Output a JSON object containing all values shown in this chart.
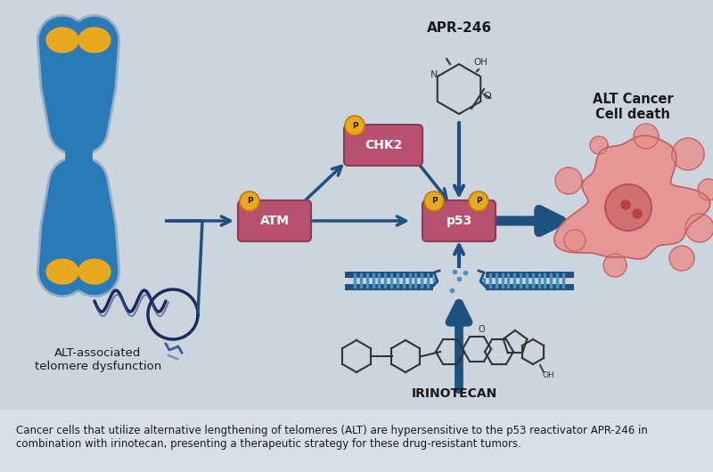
{
  "background_color": "#ccd4de",
  "caption_background": "#d8dfe8",
  "caption": "Cancer cells that utilize alternative lengthening of telomeres (ALT) are hypersensitive to the p53 reactivator APR-246 in\ncombination with irinotecan, presenting a therapeutic strategy for these drug-resistant tumors.",
  "caption_fontsize": 8.5,
  "caption_color": "#1a1a1a",
  "arrow_color": "#1e5080",
  "label_ATM": "ATM",
  "label_CHK2": "CHK2",
  "label_p53": "p53",
  "box_color": "#b85070",
  "box_edge_color": "#8b3a52",
  "p_circle_color": "#e8a820",
  "p_circle_edge": "#c07800",
  "apr246_label": "APR-246",
  "irinotecan_label": "IRINOTECAN",
  "alt_label": "ALT-associated\ntelomere dysfunction",
  "cancer_label": "ALT Cancer\nCell death",
  "chrom_color": "#2a7ab8",
  "chrom_edge": "#1a5a98",
  "tip_color": "#e8a820",
  "dna_color": "#1e5080",
  "cancer_fill": "#e89090",
  "cancer_edge": "#c06060",
  "cancer_nucleus": "#d07070",
  "figsize": [
    8.0,
    5.3
  ],
  "dpi": 100
}
